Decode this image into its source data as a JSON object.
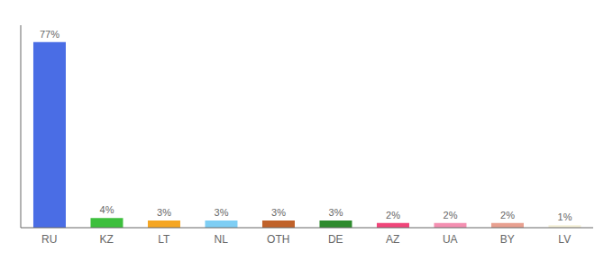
{
  "chart_data": {
    "type": "bar",
    "categories": [
      "RU",
      "KZ",
      "LT",
      "NL",
      "OTH",
      "DE",
      "AZ",
      "UA",
      "BY",
      "LV"
    ],
    "values": [
      77,
      4,
      3,
      3,
      3,
      3,
      2,
      2,
      2,
      1
    ],
    "value_labels": [
      "77%",
      "4%",
      "3%",
      "3%",
      "3%",
      "3%",
      "2%",
      "2%",
      "2%",
      "1%"
    ],
    "colors": [
      "#4a6de5",
      "#3dbf3d",
      "#f5a623",
      "#7ecef4",
      "#c0622a",
      "#2e8b2e",
      "#f0457a",
      "#f48fb1",
      "#e8a090",
      "#f5f0d8"
    ],
    "ylim": [
      0,
      84
    ],
    "data_labels": true,
    "tick_labels": "x"
  }
}
